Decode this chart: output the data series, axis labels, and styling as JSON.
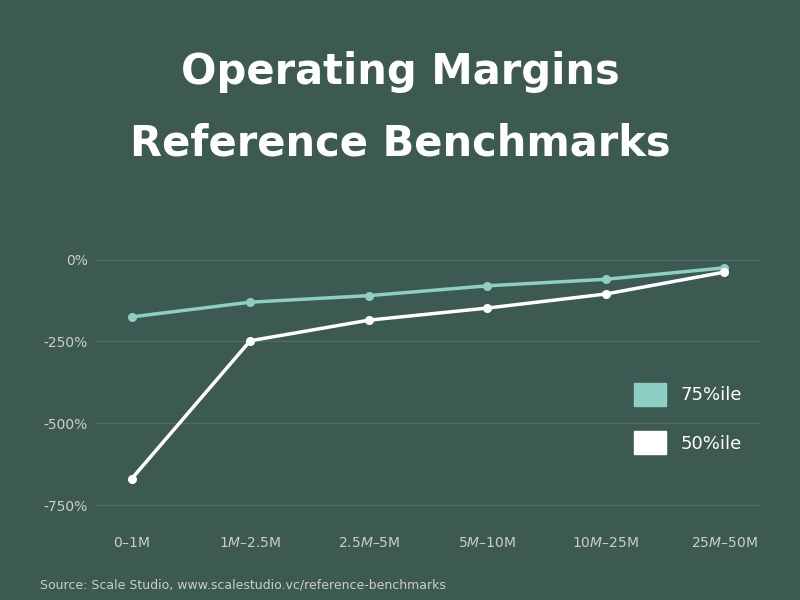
{
  "title_line1": "Operating Margins",
  "title_line2": "Reference Benchmarks",
  "background_color": "#3d5a52",
  "categories": [
    "$0 – $1M",
    "$1M – $2.5M",
    "$2.5M – $5M",
    "$5M – $10M",
    "$10M – $25M",
    "$25M – $50M"
  ],
  "p75_values": [
    -175,
    -130,
    -110,
    -80,
    -60,
    -25
  ],
  "p50_values": [
    -670,
    -248,
    -185,
    -148,
    -105,
    -38
  ],
  "p75_color": "#8ecfc4",
  "p50_color": "#ffffff",
  "grid_color": "#4d6e65",
  "text_color": "#ffffff",
  "tick_label_color": "#cccccc",
  "yticks": [
    0,
    -250,
    -500,
    -750
  ],
  "ytick_labels": [
    "0%",
    "-250%",
    "-500%",
    "-750%"
  ],
  "ylim": [
    -820,
    60
  ],
  "source_text": "Source: Scale Studio, www.scalestudio.vc/reference-benchmarks",
  "legend_75_label": "75%ile",
  "legend_50_label": "50%ile",
  "title_fontsize": 30,
  "axis_fontsize": 10,
  "source_fontsize": 9,
  "legend_fontsize": 13
}
